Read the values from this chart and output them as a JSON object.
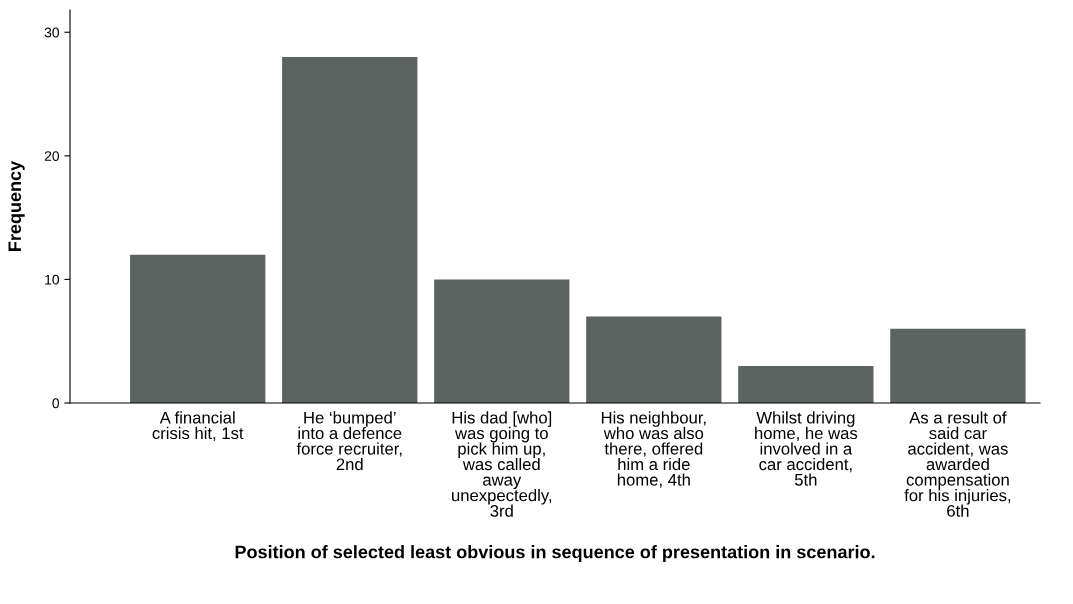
{
  "chart_data": {
    "type": "bar",
    "xlabel": "Position of selected least obvious in sequence of presentation in scenario.",
    "ylabel": "Frequency",
    "categories": [
      "A financial\ncrisis hit, 1st",
      "He ‘bumped’\ninto a defence\nforce recruiter,\n2nd",
      "His dad [who]\nwas going to\npick him up,\nwas called\naway\nunexpectedly,\n3rd",
      "His neighbour,\nwho was also\nthere, offered\nhim a ride\nhome, 4th",
      "Whilst driving\nhome, he was\ninvolved in a\ncar accident,\n5th",
      "As a result of\nsaid car\naccident, was\nawarded\ncompensation\nfor his injuries,\n6th"
    ],
    "values": [
      12,
      28,
      10,
      7,
      3,
      6
    ],
    "color": "#5b6460",
    "ylim": [
      0,
      31.8
    ],
    "yticks": [
      0,
      10,
      20,
      30
    ],
    "grid": false
  }
}
